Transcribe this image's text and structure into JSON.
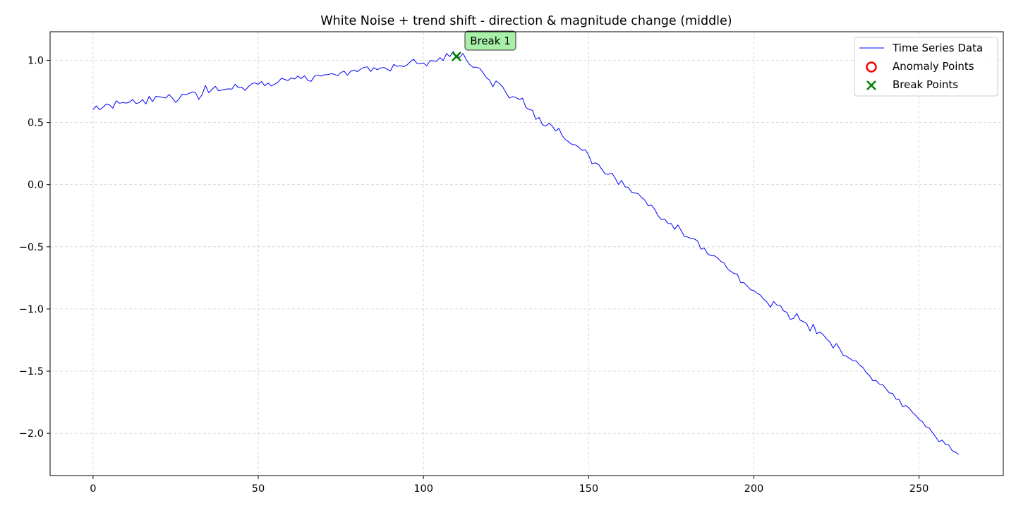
{
  "chart_data": {
    "type": "line",
    "title": "White Noise + trend shift - direction & magnitude change (middle)",
    "xlabel": "",
    "ylabel": "",
    "xlim": [
      -13,
      275.5
    ],
    "ylim": [
      -2.34,
      1.23
    ],
    "xticks": [
      0,
      50,
      100,
      150,
      200,
      250
    ],
    "xtick_labels": [
      "0",
      "50",
      "100",
      "150",
      "200",
      "250"
    ],
    "yticks": [
      1.0,
      0.5,
      0.0,
      -0.5,
      -1.0,
      -1.5,
      -2.0
    ],
    "ytick_labels": [
      "1.0",
      "0.5",
      "0.0",
      "−0.5",
      "−1.0",
      "−1.5",
      "−2.0"
    ],
    "grid": true,
    "legend_position": "top-right",
    "series": [
      {
        "name": "Time Series Data",
        "color": "#0000ff",
        "x": [
          0,
          1,
          2,
          3,
          4,
          5,
          6,
          7,
          8,
          9,
          10,
          11,
          12,
          13,
          14,
          15,
          16,
          17,
          18,
          19,
          20,
          21,
          22,
          23,
          24,
          25,
          26,
          27,
          28,
          29,
          30,
          31,
          32,
          33,
          34,
          35,
          36,
          37,
          38,
          39,
          40,
          41,
          42,
          43,
          44,
          45,
          46,
          47,
          48,
          49,
          50,
          51,
          52,
          53,
          54,
          55,
          56,
          57,
          58,
          59,
          60,
          61,
          62,
          63,
          64,
          65,
          66,
          67,
          68,
          69,
          70,
          71,
          72,
          73,
          74,
          75,
          76,
          77,
          78,
          79,
          80,
          81,
          82,
          83,
          84,
          85,
          86,
          87,
          88,
          89,
          90,
          91,
          92,
          93,
          94,
          95,
          96,
          97,
          98,
          99,
          100,
          101,
          102,
          103,
          104,
          105,
          106,
          107,
          108,
          109,
          110,
          111,
          112,
          113,
          114,
          115,
          116,
          117,
          118,
          119,
          120,
          121,
          122,
          123,
          124,
          125,
          126,
          127,
          128,
          129,
          130,
          131,
          132,
          133,
          134,
          135,
          136,
          137,
          138,
          139,
          140,
          141,
          142,
          143,
          144,
          145,
          146,
          147,
          148,
          149,
          150,
          151,
          152,
          153,
          154,
          155,
          156,
          157,
          158,
          159,
          160,
          161,
          162,
          163,
          164,
          165,
          166,
          167,
          168,
          169,
          170,
          171,
          172,
          173,
          174,
          175,
          176,
          177,
          178,
          179,
          180,
          181,
          182,
          183,
          184,
          185,
          186,
          187,
          188,
          189,
          190,
          191,
          192,
          193,
          194,
          195,
          196,
          197,
          198,
          199,
          200,
          201,
          202,
          203,
          204,
          205,
          206,
          207,
          208,
          209,
          210,
          211,
          212,
          213,
          214,
          215,
          216,
          217,
          218,
          219,
          220,
          221,
          222,
          223,
          224,
          225,
          226,
          227,
          228,
          229,
          230,
          231,
          232,
          233,
          234,
          235,
          236,
          237,
          238,
          239,
          240,
          241,
          242,
          243,
          244,
          245,
          246,
          247,
          248,
          249,
          250,
          251,
          252,
          253,
          254,
          255,
          256,
          257,
          258,
          259,
          260,
          261,
          262
        ],
        "y": [
          0.603,
          0.634,
          0.602,
          0.622,
          0.648,
          0.641,
          0.615,
          0.675,
          0.655,
          0.66,
          0.656,
          0.663,
          0.685,
          0.652,
          0.66,
          0.684,
          0.649,
          0.711,
          0.668,
          0.709,
          0.708,
          0.702,
          0.697,
          0.725,
          0.697,
          0.661,
          0.689,
          0.728,
          0.722,
          0.733,
          0.746,
          0.741,
          0.686,
          0.724,
          0.798,
          0.739,
          0.766,
          0.791,
          0.755,
          0.762,
          0.767,
          0.771,
          0.768,
          0.808,
          0.781,
          0.784,
          0.758,
          0.788,
          0.811,
          0.819,
          0.807,
          0.83,
          0.795,
          0.818,
          0.793,
          0.808,
          0.826,
          0.856,
          0.847,
          0.837,
          0.859,
          0.85,
          0.874,
          0.853,
          0.876,
          0.838,
          0.831,
          0.872,
          0.882,
          0.874,
          0.884,
          0.885,
          0.892,
          0.889,
          0.875,
          0.902,
          0.913,
          0.879,
          0.913,
          0.922,
          0.909,
          0.93,
          0.943,
          0.948,
          0.91,
          0.941,
          0.925,
          0.938,
          0.943,
          0.928,
          0.915,
          0.967,
          0.952,
          0.957,
          0.949,
          0.962,
          0.988,
          1.009,
          0.976,
          0.974,
          0.978,
          0.957,
          0.998,
          0.996,
          0.992,
          1.022,
          0.999,
          1.054,
          1.03,
          1.071,
          1.031,
          1.024,
          1.055,
          1.003,
          0.966,
          0.944,
          0.945,
          0.936,
          0.901,
          0.862,
          0.841,
          0.787,
          0.834,
          0.813,
          0.786,
          0.739,
          0.696,
          0.708,
          0.701,
          0.685,
          0.695,
          0.621,
          0.605,
          0.598,
          0.525,
          0.541,
          0.483,
          0.471,
          0.495,
          0.472,
          0.431,
          0.452,
          0.394,
          0.361,
          0.344,
          0.323,
          0.321,
          0.301,
          0.276,
          0.281,
          0.237,
          0.169,
          0.175,
          0.163,
          0.123,
          0.086,
          0.083,
          0.093,
          0.055,
          0.002,
          0.034,
          -0.017,
          -0.022,
          -0.061,
          -0.066,
          -0.073,
          -0.102,
          -0.125,
          -0.169,
          -0.165,
          -0.198,
          -0.249,
          -0.281,
          -0.276,
          -0.312,
          -0.313,
          -0.359,
          -0.324,
          -0.37,
          -0.416,
          -0.422,
          -0.433,
          -0.437,
          -0.454,
          -0.52,
          -0.51,
          -0.557,
          -0.571,
          -0.571,
          -0.589,
          -0.617,
          -0.631,
          -0.676,
          -0.697,
          -0.715,
          -0.719,
          -0.787,
          -0.789,
          -0.815,
          -0.845,
          -0.852,
          -0.874,
          -0.889,
          -0.922,
          -0.945,
          -0.986,
          -0.94,
          -0.969,
          -0.97,
          -1.016,
          -1.027,
          -1.084,
          -1.076,
          -1.036,
          -1.09,
          -1.102,
          -1.118,
          -1.177,
          -1.122,
          -1.199,
          -1.186,
          -1.207,
          -1.242,
          -1.266,
          -1.314,
          -1.278,
          -1.321,
          -1.371,
          -1.38,
          -1.397,
          -1.417,
          -1.418,
          -1.452,
          -1.47,
          -1.512,
          -1.535,
          -1.577,
          -1.576,
          -1.604,
          -1.609,
          -1.643,
          -1.675,
          -1.679,
          -1.725,
          -1.73,
          -1.786,
          -1.776,
          -1.797,
          -1.831,
          -1.856,
          -1.888,
          -1.906,
          -1.947,
          -1.955,
          -1.992,
          -2.028,
          -2.068,
          -2.055,
          -2.09,
          -2.094,
          -2.139,
          -2.152,
          -2.17
        ]
      }
    ],
    "legend": [
      {
        "label": "Time Series Data",
        "marker": "line",
        "color": "#0000ff"
      },
      {
        "label": "Anomaly Points",
        "marker": "circle",
        "color": "#ff0000"
      },
      {
        "label": "Break Points",
        "marker": "x",
        "color": "#008000"
      }
    ],
    "anomaly_points": [],
    "break_points": [
      {
        "x": 110,
        "y": 1.031,
        "label": "Break 1",
        "color": "#008000",
        "box_color": "#a8f0a8"
      }
    ]
  }
}
